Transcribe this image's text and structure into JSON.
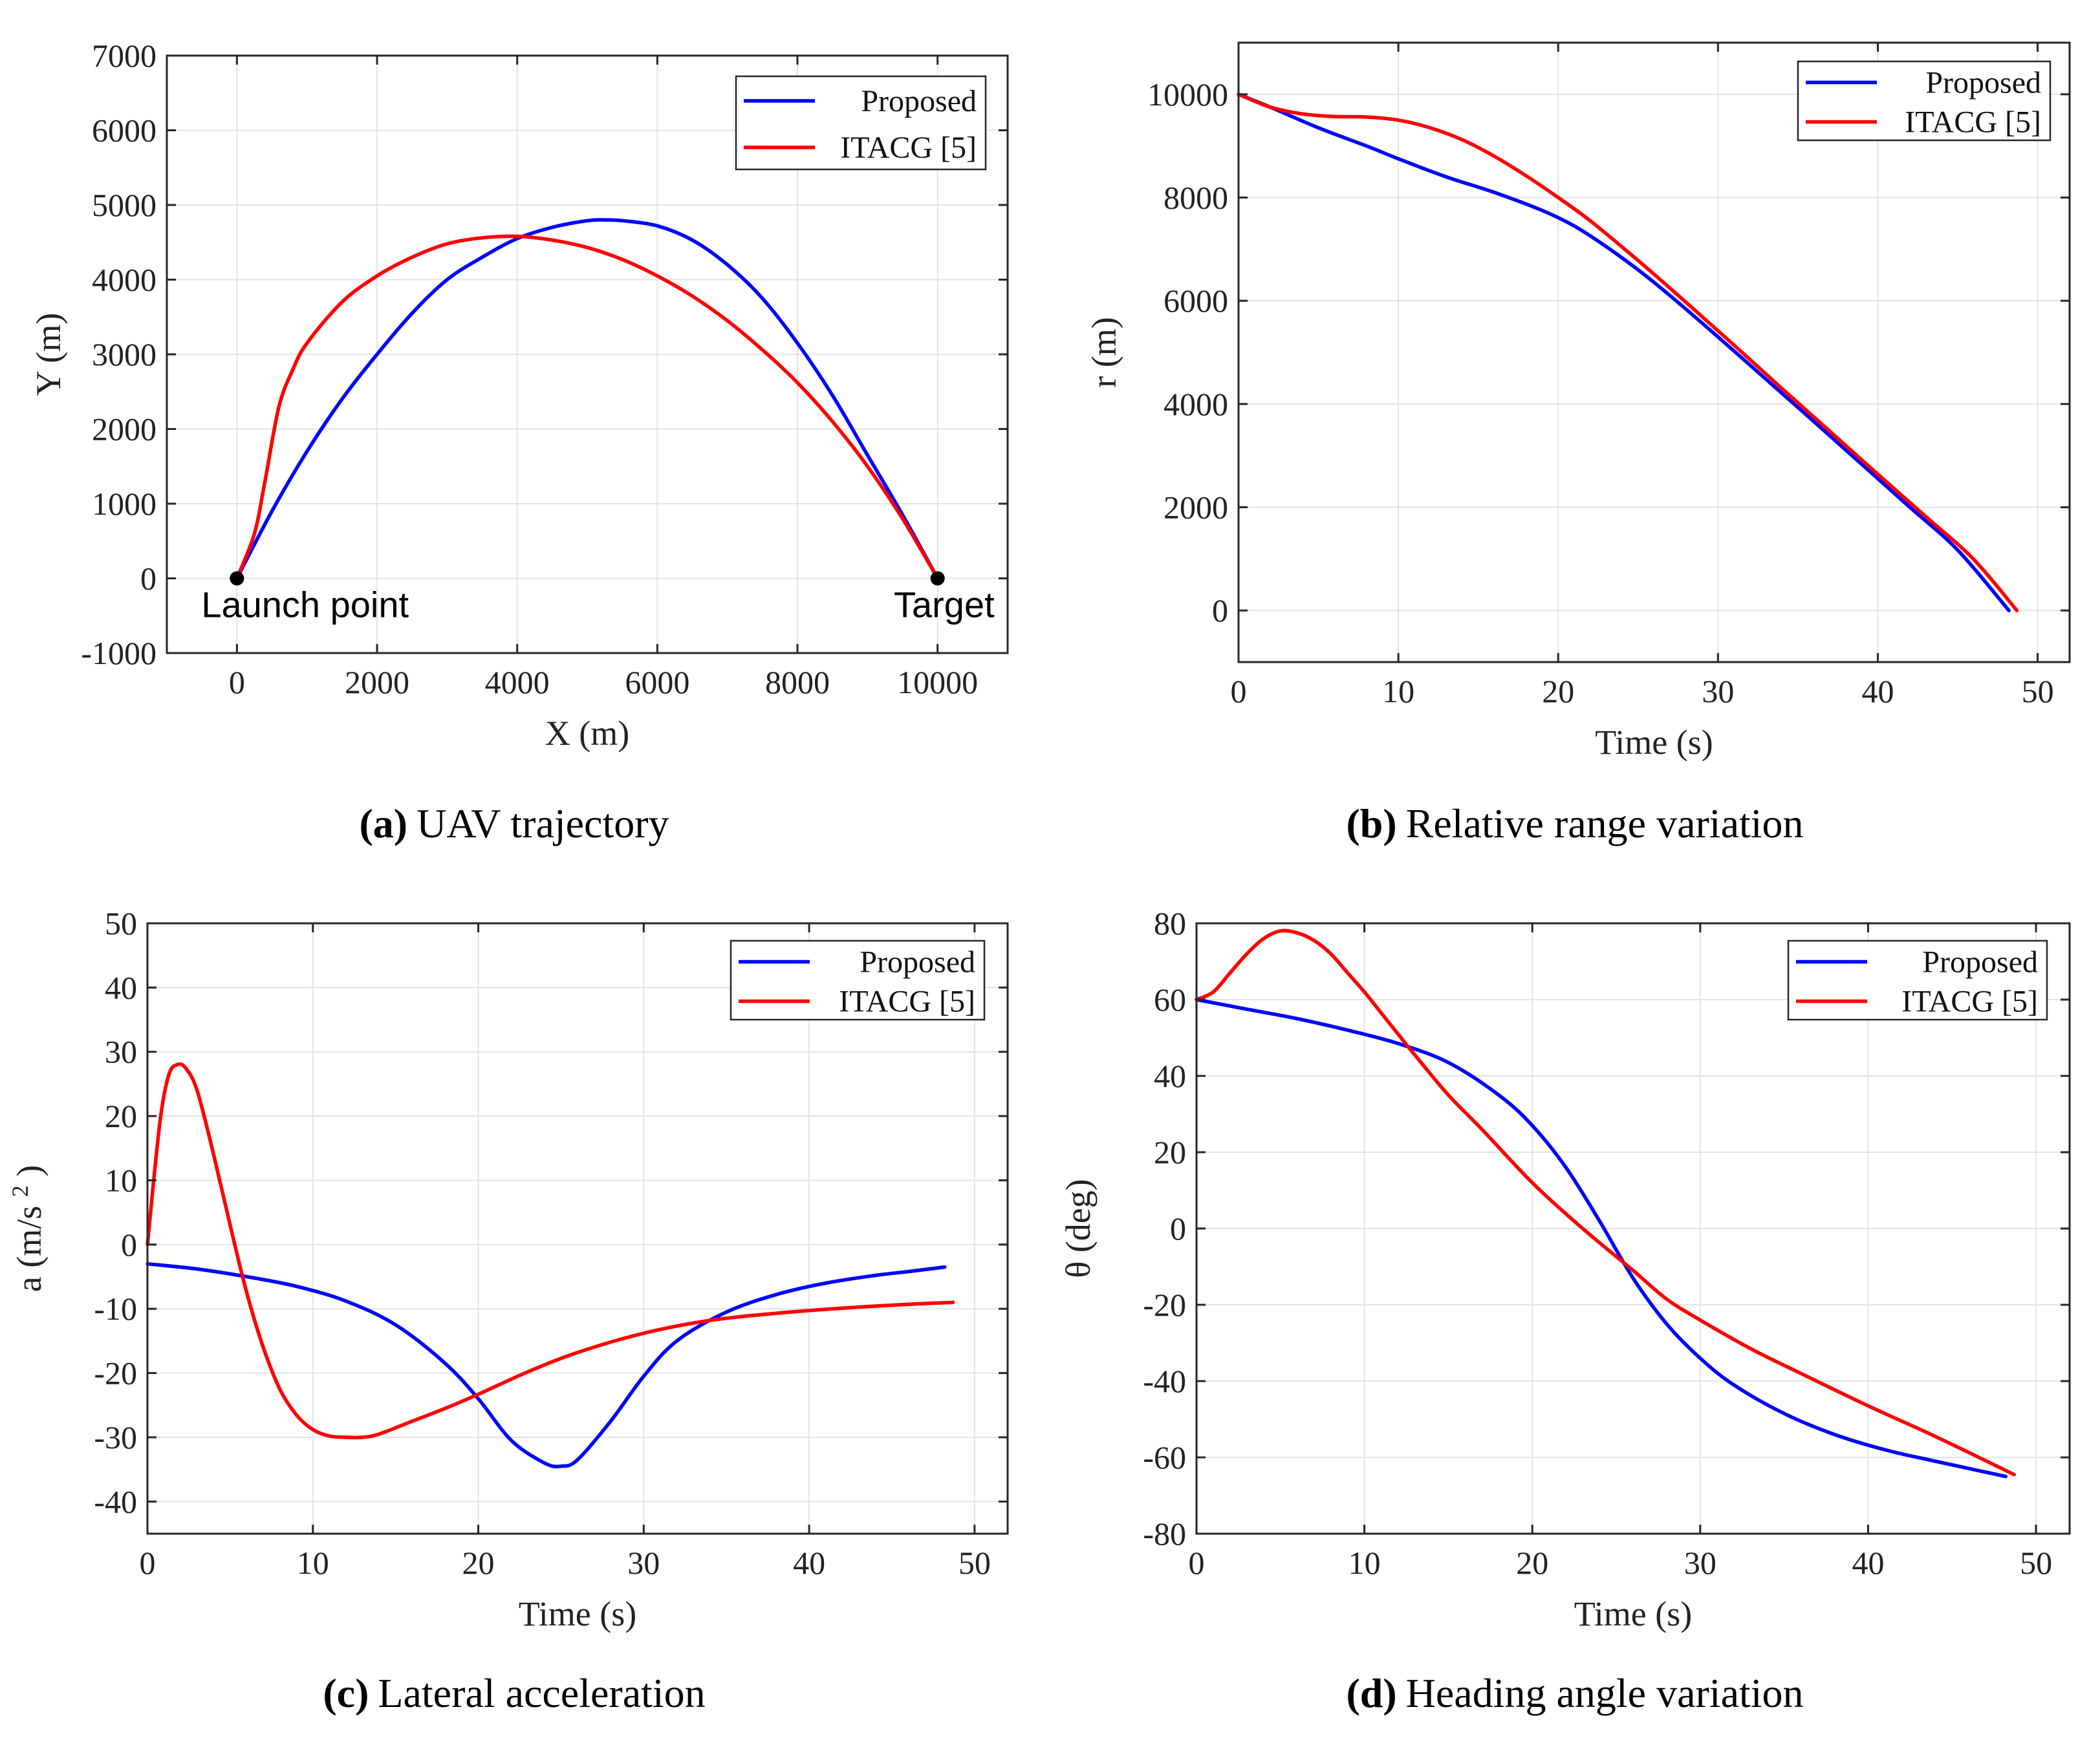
{
  "colors": {
    "proposed": "#0000ff",
    "itacg": "#ff0000",
    "axis": "#262626",
    "grid": "#e3e3e3"
  },
  "chart_data": [
    {
      "type": "line",
      "caption_letter": "(a)",
      "caption_text": "UAV trajectory",
      "title": "",
      "xlabel": "X (m)",
      "ylabel": "Y (m)",
      "xlim": [
        -1000,
        11000
      ],
      "ylim": [
        -1000,
        7000
      ],
      "xticks": [
        0,
        2000,
        4000,
        6000,
        8000,
        10000
      ],
      "xtick_labels": [
        "0",
        "2000",
        "4000",
        "6000",
        "8000",
        "10000"
      ],
      "yticks": [
        -1000,
        0,
        1000,
        2000,
        3000,
        4000,
        5000,
        6000,
        7000
      ],
      "ytick_labels": [
        "-1000",
        "0",
        "1000",
        "2000",
        "3000",
        "4000",
        "5000",
        "6000",
        "7000"
      ],
      "grid": true,
      "legend_position": "top-right",
      "series": [
        {
          "name": "Proposed",
          "color": "#0000ff",
          "x": [
            0,
            500,
            1000,
            1500,
            2000,
            2500,
            3000,
            3500,
            4000,
            4500,
            5000,
            5250,
            5500,
            6000,
            6500,
            7000,
            7500,
            8000,
            8500,
            9000,
            9500,
            10000
          ],
          "y": [
            0,
            900,
            1700,
            2400,
            3000,
            3550,
            4000,
            4300,
            4550,
            4700,
            4790,
            4800,
            4790,
            4720,
            4530,
            4200,
            3750,
            3150,
            2450,
            1650,
            850,
            0
          ]
        },
        {
          "name": "ITACG [5]",
          "color": "#ff0000",
          "x": [
            0,
            250,
            400,
            600,
            800,
            1000,
            1500,
            2000,
            2500,
            3000,
            3500,
            4000,
            4500,
            5000,
            5500,
            6000,
            6500,
            7000,
            7500,
            8000,
            8500,
            9000,
            9500,
            10000
          ],
          "y": [
            0,
            600,
            1300,
            2300,
            2800,
            3150,
            3700,
            4050,
            4300,
            4480,
            4560,
            4580,
            4530,
            4430,
            4270,
            4050,
            3780,
            3450,
            3060,
            2620,
            2100,
            1500,
            800,
            0
          ]
        }
      ],
      "annotations": [
        {
          "label": "Launch point",
          "x": 0,
          "y": 0
        },
        {
          "label": "Target",
          "x": 10000,
          "y": 0
        }
      ]
    },
    {
      "type": "line",
      "caption_letter": "(b)",
      "caption_text": "Relative range variation",
      "title": "",
      "xlabel": "Time (s)",
      "ylabel": "r (m)",
      "xlim": [
        0,
        52
      ],
      "ylim": [
        -1000,
        11000
      ],
      "xticks": [
        0,
        10,
        20,
        30,
        40,
        50
      ],
      "xtick_labels": [
        "0",
        "10",
        "20",
        "30",
        "40",
        "50"
      ],
      "yticks": [
        0,
        2000,
        4000,
        6000,
        8000,
        10000
      ],
      "ytick_labels": [
        "0",
        "2000",
        "4000",
        "6000",
        "8000",
        "10000"
      ],
      "grid": true,
      "legend_position": "top-right",
      "series": [
        {
          "name": "Proposed",
          "color": "#0000ff",
          "x": [
            0,
            2,
            5,
            8,
            10,
            13,
            16,
            19,
            21,
            23,
            25,
            27,
            30,
            33,
            36,
            39,
            42,
            45,
            48.2
          ],
          "y": [
            10000,
            9750,
            9350,
            9000,
            8750,
            8400,
            8100,
            7750,
            7450,
            7050,
            6600,
            6100,
            5300,
            4480,
            3660,
            2830,
            2000,
            1170,
            0
          ]
        },
        {
          "name": "ITACG [5]",
          "color": "#ff0000",
          "x": [
            0,
            2,
            4,
            6,
            8,
            10,
            12,
            14,
            16,
            18,
            20,
            22,
            25,
            28,
            31,
            34,
            37,
            40,
            43,
            46,
            48.7
          ],
          "y": [
            10000,
            9750,
            9620,
            9570,
            9560,
            9500,
            9350,
            9120,
            8800,
            8420,
            8000,
            7550,
            6780,
            5970,
            5140,
            4300,
            3470,
            2640,
            1820,
            990,
            0
          ]
        }
      ]
    },
    {
      "type": "line",
      "caption_letter": "(c)",
      "caption_text": "Lateral acceleration",
      "title": "",
      "xlabel": "Time (s)",
      "ylabel": "a (m/s",
      "ylabel_superscript": "2",
      "ylabel_close": ")",
      "xlim": [
        0,
        52
      ],
      "ylim": [
        -45,
        50
      ],
      "xticks": [
        0,
        10,
        20,
        30,
        40,
        50
      ],
      "xtick_labels": [
        "0",
        "10",
        "20",
        "30",
        "40",
        "50"
      ],
      "yticks": [
        -40,
        -30,
        -20,
        -10,
        0,
        10,
        20,
        30,
        40,
        50
      ],
      "ytick_labels": [
        "-40",
        "-30",
        "-20",
        "-10",
        "0",
        "10",
        "20",
        "30",
        "40",
        "50"
      ],
      "grid": true,
      "legend_position": "top-right",
      "series": [
        {
          "name": "Proposed",
          "color": "#0000ff",
          "x": [
            0,
            3,
            6,
            9,
            12,
            15,
            18,
            20,
            22,
            24,
            25,
            26,
            28,
            30,
            32,
            35,
            38,
            41,
            44,
            46,
            48.2
          ],
          "y": [
            -3,
            -3.8,
            -5,
            -6.5,
            -8.8,
            -12.5,
            -18.5,
            -24,
            -30.5,
            -34,
            -34.5,
            -33.5,
            -27.5,
            -20.5,
            -15,
            -10.5,
            -7.8,
            -6,
            -4.8,
            -4.2,
            -3.5
          ]
        },
        {
          "name": "ITACG [5]",
          "color": "#ff0000",
          "x": [
            0,
            0.3,
            0.8,
            1.3,
            1.8,
            2.3,
            3,
            4,
            5,
            6,
            7,
            8,
            9,
            10,
            11,
            12,
            13,
            14,
            16,
            18,
            20,
            23,
            26,
            30,
            34,
            38,
            42,
            46,
            48.7
          ],
          "y": [
            0,
            8,
            20,
            26.5,
            28,
            27.5,
            24,
            14,
            3,
            -7.5,
            -16,
            -22.5,
            -26.5,
            -28.8,
            -29.8,
            -30,
            -30,
            -29.5,
            -27.5,
            -25.5,
            -23.3,
            -19.8,
            -16.8,
            -13.8,
            -11.8,
            -10.7,
            -9.9,
            -9.3,
            -9
          ]
        }
      ]
    },
    {
      "type": "line",
      "caption_letter": "(d)",
      "caption_text": "Heading angle variation",
      "title": "",
      "xlabel": "Time (s)",
      "ylabel": "θ (deg)",
      "xlim": [
        0,
        52
      ],
      "ylim": [
        -80,
        80
      ],
      "xticks": [
        0,
        10,
        20,
        30,
        40,
        50
      ],
      "xtick_labels": [
        "0",
        "10",
        "20",
        "30",
        "40",
        "50"
      ],
      "yticks": [
        -80,
        -60,
        -40,
        -20,
        0,
        20,
        40,
        60,
        80
      ],
      "ytick_labels": [
        "-80",
        "-60",
        "-40",
        "-20",
        "0",
        "20",
        "40",
        "60",
        "80"
      ],
      "grid": true,
      "legend_position": "top-right",
      "series": [
        {
          "name": "Proposed",
          "color": "#0000ff",
          "x": [
            0,
            3,
            6,
            9,
            12,
            15,
            18,
            20,
            22,
            24,
            26,
            28,
            30,
            32,
            35,
            38,
            41,
            44,
            48.2
          ],
          "y": [
            60,
            57.5,
            55,
            52,
            48.5,
            43.5,
            35,
            27,
            16,
            2,
            -13,
            -25,
            -34,
            -41,
            -48.5,
            -54,
            -58,
            -61,
            -65
          ]
        },
        {
          "name": "ITACG [5]",
          "color": "#ff0000",
          "x": [
            0,
            1,
            2,
            3,
            4,
            5,
            6,
            7,
            8,
            9,
            10,
            11,
            12,
            13,
            15,
            17,
            20,
            23,
            26,
            28,
            30,
            33,
            36,
            40,
            44,
            48.7
          ],
          "y": [
            60,
            62,
            67,
            72,
            76,
            78,
            77.5,
            75.5,
            72,
            67,
            62,
            56.5,
            51,
            45.5,
            35,
            26,
            12,
            0,
            -11,
            -18.5,
            -24,
            -31.5,
            -38,
            -46.5,
            -54.5,
            -64.5
          ]
        }
      ]
    }
  ]
}
